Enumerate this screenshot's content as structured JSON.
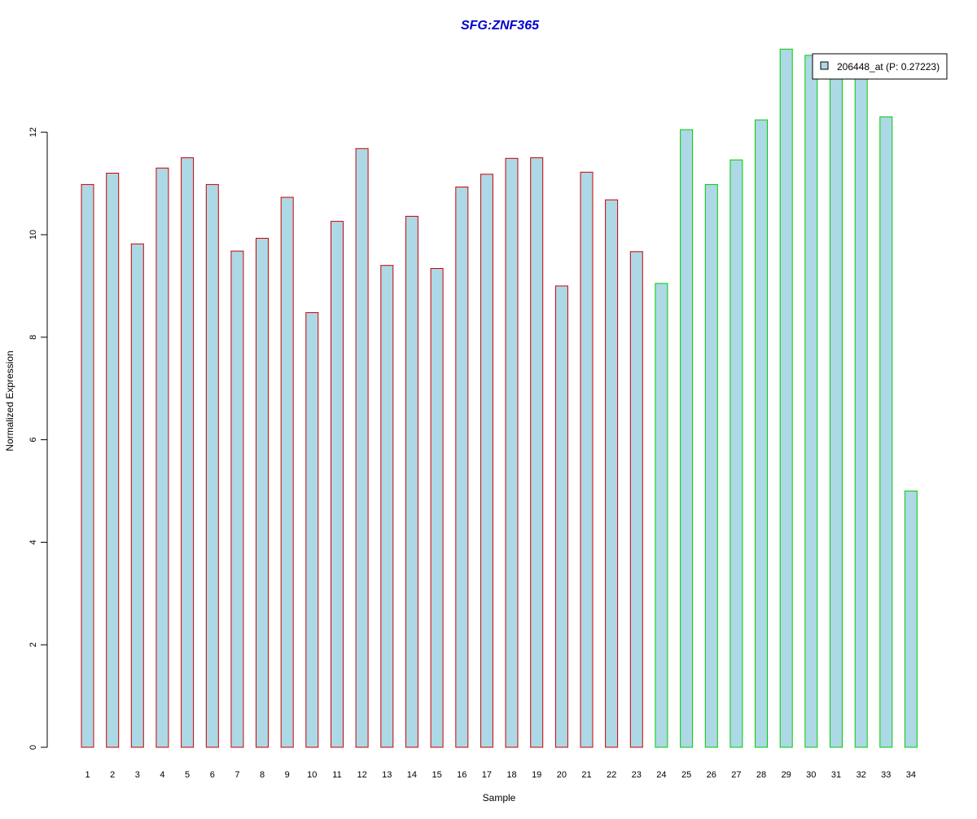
{
  "chart_data": {
    "type": "bar",
    "title": "SFG:ZNF365",
    "xlabel": "Sample",
    "ylabel": "Normalized Expression",
    "ylim": [
      0,
      13.8
    ],
    "yticks": [
      0,
      2,
      4,
      6,
      8,
      10,
      12
    ],
    "grid": false,
    "legend_position": "top-right",
    "categories": [
      "1",
      "2",
      "3",
      "4",
      "5",
      "6",
      "7",
      "8",
      "9",
      "10",
      "11",
      "12",
      "13",
      "14",
      "15",
      "16",
      "17",
      "18",
      "19",
      "20",
      "21",
      "22",
      "23",
      "24",
      "25",
      "26",
      "27",
      "28",
      "29",
      "30",
      "31",
      "32",
      "33",
      "34"
    ],
    "series": [
      {
        "name": "206448_at (P: 0.27223)",
        "values": [
          10.98,
          11.2,
          9.82,
          11.3,
          11.5,
          10.98,
          9.68,
          9.93,
          10.73,
          8.48,
          10.26,
          11.68,
          9.4,
          10.36,
          9.34,
          10.93,
          11.18,
          11.49,
          11.5,
          9.0,
          11.22,
          10.68,
          9.67,
          9.05,
          12.05,
          10.98,
          11.46,
          12.24,
          13.62,
          13.5,
          13.3,
          13.15,
          12.3,
          5.0
        ],
        "groups": [
          "red",
          "red",
          "red",
          "red",
          "red",
          "red",
          "red",
          "red",
          "red",
          "red",
          "red",
          "red",
          "red",
          "red",
          "red",
          "red",
          "red",
          "red",
          "red",
          "red",
          "red",
          "red",
          "red",
          "green",
          "green",
          "green",
          "green",
          "green",
          "green",
          "green",
          "green",
          "green",
          "green",
          "green"
        ]
      }
    ],
    "colors": {
      "fill": "#add8e6",
      "red_border": "#cc0000",
      "green_border": "#00cc00",
      "title": "#0000cc",
      "axis": "#000000"
    }
  }
}
